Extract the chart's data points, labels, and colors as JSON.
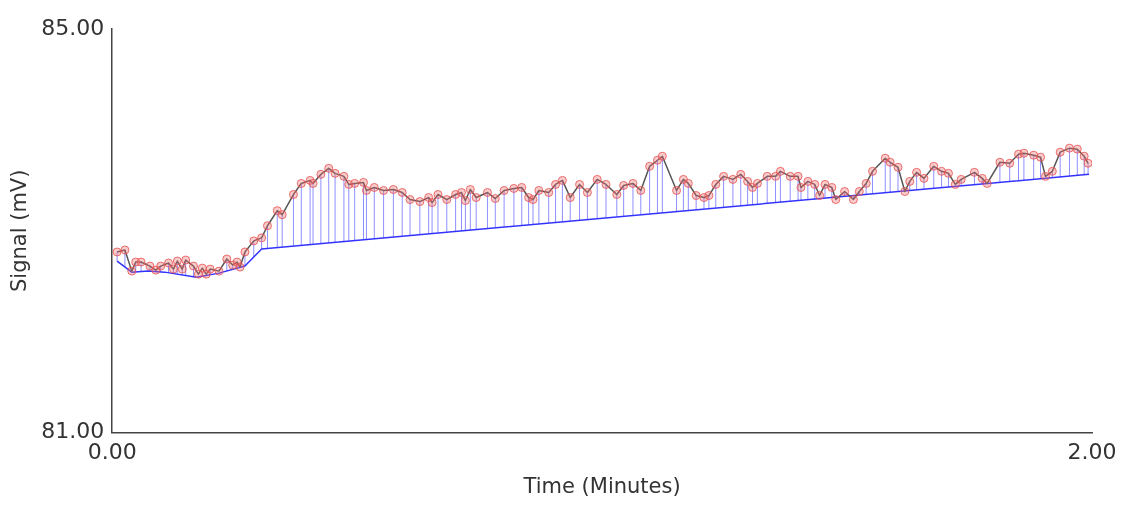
{
  "chart_data": {
    "type": "line",
    "xlabel": "Time (Minutes)",
    "ylabel": "Signal (mV)",
    "xlim": [
      0,
      2
    ],
    "xticks": [
      {
        "value": 0,
        "label": "0.00"
      },
      {
        "value": 2,
        "label": "2.00"
      }
    ],
    "ylim": [
      81,
      85
    ],
    "yticks": [
      {
        "value": 81,
        "label": "81.00"
      },
      {
        "value": 85,
        "label": "85.00"
      }
    ],
    "grid": false,
    "legend": false,
    "series": [
      {
        "color": "#555555",
        "marker": "circle",
        "x": [
          0.01,
          0.026,
          0.04,
          0.048,
          0.059,
          0.077,
          0.089,
          0.099,
          0.115,
          0.125,
          0.133,
          0.143,
          0.15,
          0.166,
          0.176,
          0.184,
          0.192,
          0.2,
          0.218,
          0.234,
          0.246,
          0.255,
          0.261,
          0.271,
          0.289,
          0.305,
          0.317,
          0.337,
          0.347,
          0.37,
          0.386,
          0.404,
          0.41,
          0.426,
          0.442,
          0.455,
          0.473,
          0.483,
          0.495,
          0.513,
          0.519,
          0.535,
          0.554,
          0.574,
          0.592,
          0.608,
          0.628,
          0.646,
          0.653,
          0.665,
          0.683,
          0.701,
          0.713,
          0.721,
          0.731,
          0.743,
          0.766,
          0.782,
          0.8,
          0.82,
          0.836,
          0.85,
          0.859,
          0.871,
          0.891,
          0.905,
          0.919,
          0.935,
          0.954,
          0.97,
          0.99,
          1.008,
          1.03,
          1.044,
          1.063,
          1.079,
          1.097,
          1.113,
          1.123,
          1.152,
          1.166,
          1.176,
          1.192,
          1.208,
          1.218,
          1.232,
          1.248,
          1.267,
          1.283,
          1.297,
          1.307,
          1.317,
          1.337,
          1.354,
          1.364,
          1.384,
          1.4,
          1.406,
          1.42,
          1.434,
          1.444,
          1.455,
          1.469,
          1.477,
          1.495,
          1.513,
          1.525,
          1.539,
          1.552,
          1.578,
          1.588,
          1.604,
          1.618,
          1.628,
          1.642,
          1.657,
          1.677,
          1.693,
          1.707,
          1.721,
          1.733,
          1.76,
          1.776,
          1.786,
          1.812,
          1.832,
          1.85,
          1.861,
          1.881,
          1.895,
          1.905,
          1.919,
          1.935,
          1.954,
          1.97,
          1.984,
          1.992
        ],
        "values": [
          82.79,
          82.81,
          82.6,
          82.69,
          82.69,
          82.65,
          82.61,
          82.65,
          82.68,
          82.62,
          82.7,
          82.62,
          82.71,
          82.65,
          82.57,
          82.63,
          82.57,
          82.62,
          82.6,
          82.72,
          82.66,
          82.69,
          82.64,
          82.79,
          82.9,
          82.93,
          83.05,
          83.2,
          83.16,
          83.36,
          83.47,
          83.5,
          83.47,
          83.56,
          83.62,
          83.57,
          83.54,
          83.46,
          83.47,
          83.48,
          83.4,
          83.43,
          83.4,
          83.41,
          83.38,
          83.31,
          83.29,
          83.33,
          83.28,
          83.36,
          83.31,
          83.36,
          83.38,
          83.3,
          83.41,
          83.33,
          83.38,
          83.32,
          83.4,
          83.42,
          83.43,
          83.33,
          83.31,
          83.4,
          83.38,
          83.46,
          83.5,
          83.33,
          83.46,
          83.38,
          83.51,
          83.46,
          83.36,
          83.45,
          83.47,
          83.4,
          83.64,
          83.7,
          83.74,
          83.4,
          83.51,
          83.47,
          83.35,
          83.33,
          83.35,
          83.46,
          83.54,
          83.51,
          83.56,
          83.49,
          83.43,
          83.47,
          83.54,
          83.54,
          83.59,
          83.54,
          83.54,
          83.43,
          83.49,
          83.46,
          83.35,
          83.46,
          83.43,
          83.31,
          83.39,
          83.31,
          83.39,
          83.47,
          83.59,
          83.72,
          83.68,
          83.63,
          83.39,
          83.49,
          83.58,
          83.52,
          83.64,
          83.59,
          83.57,
          83.46,
          83.51,
          83.58,
          83.52,
          83.47,
          83.68,
          83.67,
          83.76,
          83.77,
          83.75,
          83.73,
          83.54,
          83.59,
          83.78,
          83.82,
          83.81,
          83.74,
          83.67
        ],
        "errors": [
          [
            82.7,
            82.79
          ],
          [
            82.64,
            82.81
          ],
          null,
          [
            82.59,
            82.69
          ],
          [
            82.6,
            82.69
          ],
          [
            82.6,
            82.65
          ],
          null,
          [
            82.59,
            82.65
          ],
          [
            82.58,
            82.68
          ],
          [
            82.58,
            82.62
          ],
          [
            82.57,
            82.7
          ],
          [
            82.56,
            82.62
          ],
          [
            82.56,
            82.71
          ],
          [
            82.54,
            82.65
          ],
          null,
          null,
          null,
          [
            82.56,
            82.62
          ],
          null,
          [
            82.6,
            82.72
          ],
          [
            82.62,
            82.66
          ],
          [
            82.63,
            82.69
          ],
          null,
          [
            82.65,
            82.79
          ],
          [
            82.74,
            82.9
          ],
          [
            82.82,
            82.93
          ],
          [
            82.83,
            83.05
          ],
          [
            82.83,
            83.2
          ],
          [
            82.84,
            83.16
          ],
          [
            82.85,
            83.36
          ],
          [
            82.86,
            83.47
          ],
          [
            82.86,
            83.5
          ],
          [
            82.87,
            83.47
          ],
          [
            82.87,
            83.56
          ],
          [
            82.88,
            83.62
          ],
          [
            82.89,
            83.57
          ],
          [
            82.89,
            83.54
          ],
          [
            82.9,
            83.46
          ],
          [
            82.9,
            83.47
          ],
          [
            82.91,
            83.48
          ],
          [
            82.91,
            83.4
          ],
          [
            82.92,
            83.43
          ],
          [
            82.93,
            83.4
          ],
          [
            82.94,
            83.41
          ],
          [
            82.95,
            83.38
          ],
          [
            82.95,
            83.31
          ],
          [
            82.96,
            83.29
          ],
          [
            82.97,
            83.33
          ],
          [
            82.97,
            83.28
          ],
          [
            82.98,
            83.36
          ],
          [
            82.99,
            83.31
          ],
          [
            82.99,
            83.36
          ],
          [
            83.0,
            83.38
          ],
          [
            83.0,
            83.3
          ],
          [
            83.01,
            83.41
          ],
          [
            83.01,
            83.33
          ],
          [
            83.02,
            83.38
          ],
          [
            83.03,
            83.32
          ],
          [
            83.04,
            83.4
          ],
          [
            83.05,
            83.42
          ],
          [
            83.05,
            83.43
          ],
          [
            83.06,
            83.33
          ],
          [
            83.06,
            83.31
          ],
          [
            83.07,
            83.4
          ],
          [
            83.08,
            83.38
          ],
          [
            83.08,
            83.46
          ],
          [
            83.09,
            83.5
          ],
          [
            83.1,
            83.33
          ],
          [
            83.1,
            83.46
          ],
          [
            83.11,
            83.38
          ],
          [
            83.12,
            83.51
          ],
          [
            83.13,
            83.46
          ],
          [
            83.14,
            83.36
          ],
          [
            83.14,
            83.45
          ],
          [
            83.15,
            83.47
          ],
          [
            83.16,
            83.4
          ],
          [
            83.17,
            83.64
          ],
          [
            83.17,
            83.7
          ],
          [
            83.18,
            83.74
          ],
          [
            83.19,
            83.4
          ],
          [
            83.2,
            83.51
          ],
          [
            83.2,
            83.47
          ],
          [
            83.21,
            83.35
          ],
          [
            83.22,
            83.33
          ],
          [
            83.22,
            83.35
          ],
          [
            83.23,
            83.46
          ],
          [
            83.23,
            83.54
          ],
          [
            83.24,
            83.51
          ],
          [
            83.25,
            83.56
          ],
          [
            83.25,
            83.49
          ],
          [
            83.26,
            83.43
          ],
          [
            83.26,
            83.47
          ],
          [
            83.27,
            83.54
          ],
          [
            83.28,
            83.54
          ],
          [
            83.28,
            83.59
          ],
          [
            83.29,
            83.54
          ],
          [
            83.3,
            83.54
          ],
          [
            83.3,
            83.43
          ],
          [
            83.31,
            83.49
          ],
          [
            83.31,
            83.46
          ],
          null,
          [
            83.32,
            83.46
          ],
          [
            83.33,
            83.43
          ],
          null,
          [
            83.34,
            83.39
          ],
          [
            83.35,
            83.31
          ],
          [
            83.35,
            83.39
          ],
          [
            83.36,
            83.47
          ],
          [
            83.37,
            83.59
          ],
          [
            83.38,
            83.72
          ],
          [
            83.38,
            83.68
          ],
          [
            83.39,
            83.63
          ],
          null,
          [
            83.4,
            83.49
          ],
          [
            83.41,
            83.58
          ],
          [
            83.41,
            83.52
          ],
          [
            83.42,
            83.64
          ],
          [
            83.43,
            83.59
          ],
          [
            83.43,
            83.57
          ],
          null,
          [
            83.45,
            83.51
          ],
          [
            83.46,
            83.58
          ],
          [
            83.46,
            83.52
          ],
          null,
          [
            83.48,
            83.68
          ],
          [
            83.49,
            83.67
          ],
          [
            83.5,
            83.76
          ],
          [
            83.5,
            83.77
          ],
          [
            83.51,
            83.75
          ],
          [
            83.52,
            83.73
          ],
          null,
          [
            83.53,
            83.59
          ],
          [
            83.53,
            83.78
          ],
          [
            83.54,
            83.82
          ],
          [
            83.55,
            83.81
          ],
          [
            83.56,
            83.74
          ],
          [
            83.56,
            83.67
          ]
        ]
      },
      {
        "color": "#3333ff",
        "marker": "none",
        "x": [
          0.01,
          0.04,
          0.073,
          0.107,
          0.172,
          0.218,
          0.271,
          0.305,
          1.994
        ],
        "values": [
          82.7,
          82.59,
          82.6,
          82.59,
          82.54,
          82.58,
          82.65,
          82.82,
          83.56
        ]
      }
    ]
  }
}
